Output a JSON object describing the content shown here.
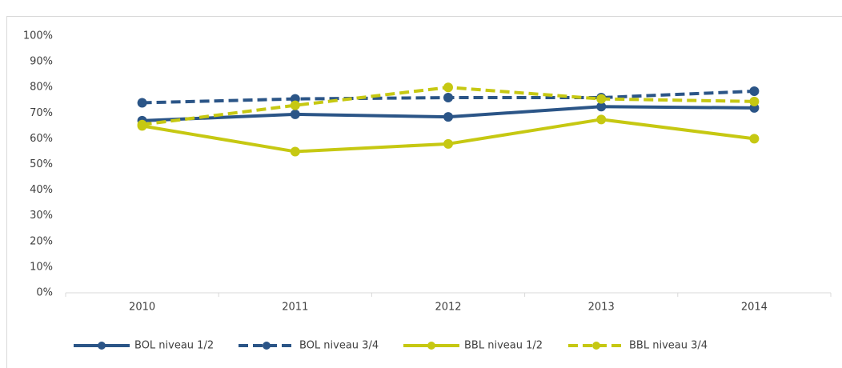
{
  "chart_data": {
    "type": "line",
    "categories": [
      "2010",
      "2011",
      "2012",
      "2013",
      "2014"
    ],
    "series": [
      {
        "name": "BOL niveau 1/2",
        "color": "#2b5587",
        "dashed": false,
        "values": [
          67,
          69.5,
          68.5,
          72.5,
          72
        ]
      },
      {
        "name": "BOL niveau 3/4",
        "color": "#2b5587",
        "dashed": true,
        "values": [
          74,
          75.5,
          76,
          76,
          78.5
        ]
      },
      {
        "name": "BBL niveau 1/2",
        "color": "#c6c812",
        "dashed": false,
        "values": [
          65,
          55,
          58,
          67.5,
          60
        ]
      },
      {
        "name": "BBL niveau 3/4",
        "color": "#c6c812",
        "dashed": true,
        "values": [
          65.5,
          73,
          80,
          75.5,
          74.5
        ]
      }
    ],
    "ylim": [
      0,
      100
    ],
    "yticks": [
      {
        "value": 0,
        "label": "0%"
      },
      {
        "value": 10,
        "label": "10%"
      },
      {
        "value": 20,
        "label": "20%"
      },
      {
        "value": 30,
        "label": "30%"
      },
      {
        "value": 40,
        "label": "40%"
      },
      {
        "value": 50,
        "label": "50%"
      },
      {
        "value": 60,
        "label": "60%"
      },
      {
        "value": 70,
        "label": "70%"
      },
      {
        "value": 80,
        "label": "80%"
      },
      {
        "value": 90,
        "label": "90%"
      },
      {
        "value": 100,
        "label": "100%"
      }
    ],
    "legend": "bottom"
  }
}
